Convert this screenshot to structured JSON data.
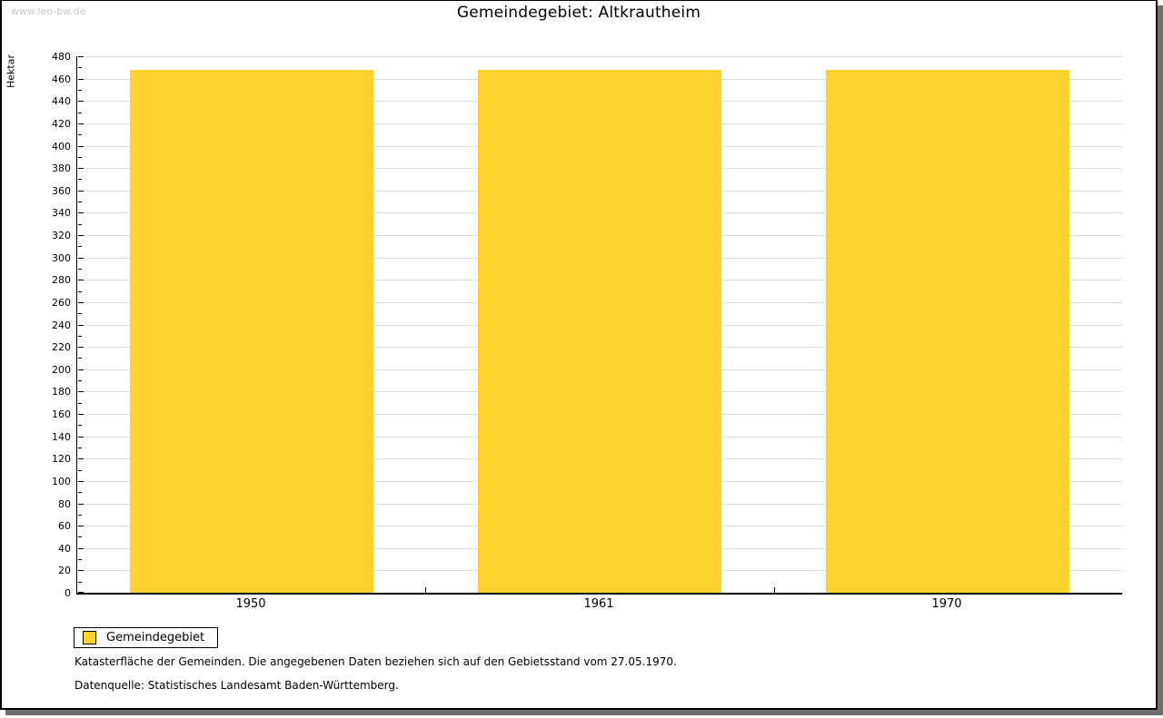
{
  "watermark": "www.leo-bw.de",
  "title": "Gemeindegebiet: Altkrautheim",
  "legend": {
    "label": "Gemeindegebiet"
  },
  "footnotes": {
    "line1": "Katasterfläche der Gemeinden. Die angegebenen Daten beziehen sich auf den Gebietsstand vom 27.05.1970.",
    "line2": "Datenquelle: Statistisches Landesamt Baden-Württemberg."
  },
  "chart_data": {
    "type": "bar",
    "title": "Gemeindegebiet: Altkrautheim",
    "categories": [
      "1950",
      "1961",
      "1970"
    ],
    "series": [
      {
        "name": "Gemeindegebiet",
        "values": [
          468,
          468,
          468
        ]
      }
    ],
    "xlabel": "",
    "ylabel": "Hektar",
    "ylim": [
      0,
      480
    ],
    "ytick_major_step": 20,
    "ytick_minor_step": 10,
    "grid": "horizontal-major",
    "legend_position": "bottom-left",
    "bar_color": "#fcd32e",
    "gridline_color": "#dcdcdc",
    "axis_color": "#000000"
  }
}
